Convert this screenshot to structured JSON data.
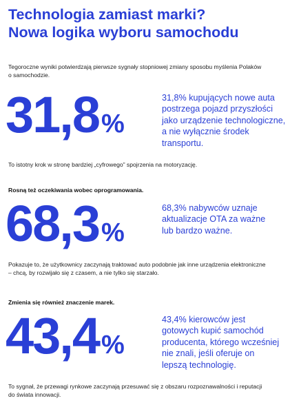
{
  "title": {
    "line1": "Technologia zamiast marki?",
    "line2": "Nowa logika wyboru samochodu"
  },
  "intro": {
    "line1": "Tegoroczne wyniki potwierdzają pierwsze sygnały stopniowej zmiany sposobu myślenia Polaków",
    "line2": "o samochodzie."
  },
  "stats": [
    {
      "heading": "",
      "number": "31,8",
      "unit": "%",
      "desc": [
        "31,8% kupujących nowe auta",
        "postrzega pojazd przyszłości",
        "jako urządzenie technologiczne,",
        "a nie wyłącznie środek",
        "transportu."
      ],
      "note": [
        "To istotny krok w stronę bardziej „cyfrowego” spojrzenia na motoryzację."
      ]
    },
    {
      "heading": "Rosną też oczekiwania wobec oprogramowania.",
      "number": "68,3",
      "unit": "%",
      "desc": [
        "68,3% nabywców uznaje",
        "aktualizacje OTA za ważne",
        "lub bardzo ważne."
      ],
      "note": [
        "Pokazuje to, że użytkownicy zaczynają traktować auto podobnie jak inne urządzenia elektroniczne",
        "– chcą, by rozwijało się z czasem, a nie tylko się starzało."
      ]
    },
    {
      "heading": "Zmienia się również znaczenie marek.",
      "number": "43,4",
      "unit": "%",
      "desc": [
        "43,4% kierowców jest",
        "gotowych kupić samochód",
        "producenta, którego wcześniej",
        "nie znali, jeśli oferuje on",
        "lepszą technologię."
      ],
      "note": [
        "To sygnał, że przewagi rynkowe zaczynają przesuwać się z obszaru rozpoznawalności i reputacji",
        "do świata innowacji."
      ]
    }
  ],
  "colors": {
    "accent": "#2a3fd6",
    "text": "#222222"
  }
}
